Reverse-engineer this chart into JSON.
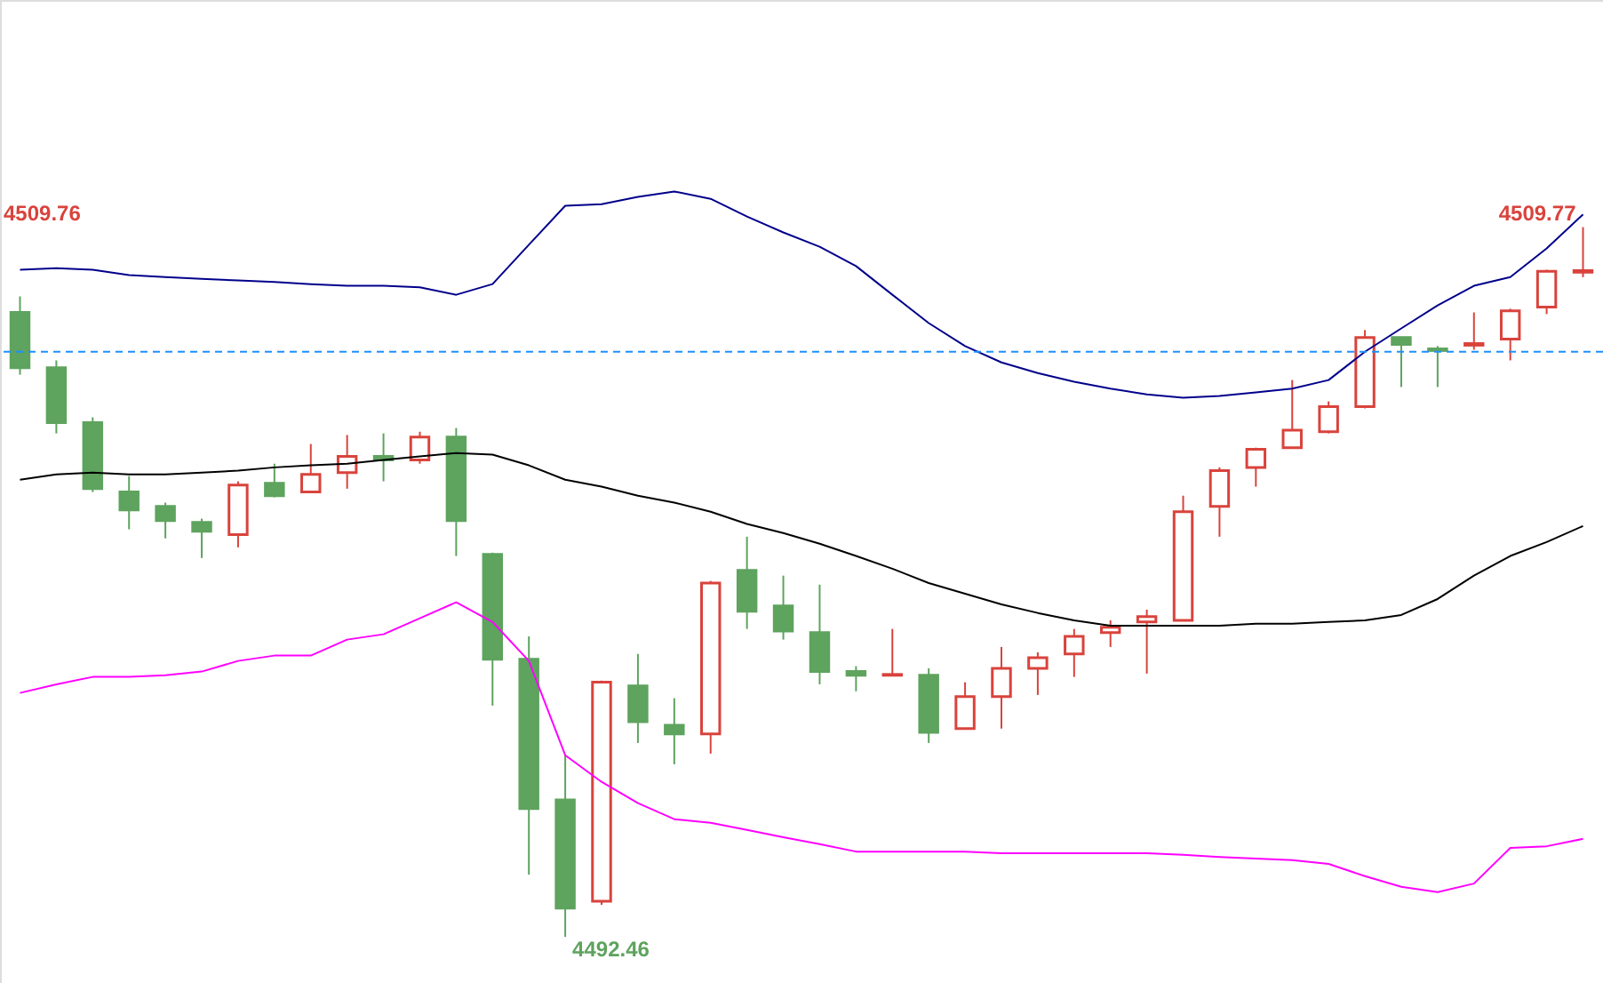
{
  "chart_data": {
    "type": "candlestick",
    "categories": [
      null,
      null,
      null,
      null,
      null,
      null,
      null,
      null,
      null,
      null,
      null,
      null,
      null,
      null,
      null,
      null,
      null,
      null,
      null,
      null,
      null,
      null,
      null,
      null,
      null,
      null,
      null,
      null,
      null,
      null,
      null,
      null,
      null,
      null,
      null,
      null,
      null,
      null,
      null,
      null,
      null,
      null,
      null,
      null
    ],
    "ohlc": [
      [
        4507.69,
        4508.08,
        4506.17,
        4506.34
      ],
      [
        4506.34,
        4506.52,
        4504.74,
        4505.0
      ],
      [
        4505.0,
        4505.13,
        4503.31,
        4503.39
      ],
      [
        4503.31,
        4503.7,
        4502.4,
        4502.87
      ],
      [
        4502.96,
        4503.05,
        4502.18,
        4502.61
      ],
      [
        4502.57,
        4502.66,
        4501.7,
        4502.35
      ],
      [
        4502.27,
        4503.57,
        4501.96,
        4503.48
      ],
      [
        4503.52,
        4504.0,
        4503.18,
        4503.22
      ],
      [
        4503.31,
        4504.48,
        4503.31,
        4503.74
      ],
      [
        4503.78,
        4504.7,
        4503.39,
        4504.18
      ],
      [
        4504.18,
        4504.74,
        4503.57,
        4504.09
      ],
      [
        4504.09,
        4504.78,
        4504.0,
        4504.65
      ],
      [
        4504.65,
        4504.87,
        4501.75,
        4502.61
      ],
      [
        4501.79,
        4501.83,
        4498.1,
        4499.23
      ],
      [
        4499.23,
        4499.79,
        4493.98,
        4495.59
      ],
      [
        4495.8,
        4496.89,
        4492.46,
        4493.16
      ],
      [
        4493.33,
        4498.71,
        4493.24,
        4498.67
      ],
      [
        4498.58,
        4499.36,
        4497.19,
        4497.71
      ],
      [
        4497.62,
        4498.28,
        4496.67,
        4497.41
      ],
      [
        4497.41,
        4501.14,
        4496.93,
        4501.09
      ],
      [
        4501.4,
        4502.22,
        4499.97,
        4500.4
      ],
      [
        4500.53,
        4501.27,
        4499.71,
        4499.92
      ],
      [
        4499.88,
        4501.05,
        4498.62,
        4498.93
      ],
      [
        4498.93,
        4499.06,
        4498.45,
        4498.84
      ],
      [
        4498.84,
        4499.97,
        4498.84,
        4498.86
      ],
      [
        4498.84,
        4499.01,
        4497.19,
        4497.45
      ],
      [
        4497.54,
        4498.67,
        4497.54,
        4498.32
      ],
      [
        4498.32,
        4499.53,
        4497.54,
        4499.01
      ],
      [
        4499.01,
        4499.4,
        4498.36,
        4499.27
      ],
      [
        4499.36,
        4499.97,
        4498.8,
        4499.79
      ],
      [
        4499.88,
        4500.18,
        4499.53,
        4500.01
      ],
      [
        4500.14,
        4500.44,
        4498.88,
        4500.27
      ],
      [
        4500.18,
        4503.22,
        4500.18,
        4502.83
      ],
      [
        4502.96,
        4503.91,
        4502.22,
        4503.83
      ],
      [
        4503.91,
        4504.39,
        4503.44,
        4504.35
      ],
      [
        4504.39,
        4506.04,
        4504.39,
        4504.82
      ],
      [
        4504.78,
        4505.52,
        4504.74,
        4505.39
      ],
      [
        4505.39,
        4507.26,
        4505.35,
        4507.08
      ],
      [
        4507.08,
        4507.08,
        4505.87,
        4506.91
      ],
      [
        4506.8,
        4506.87,
        4505.87,
        4506.76
      ],
      [
        4506.89,
        4507.69,
        4506.78,
        4506.93
      ],
      [
        4507.04,
        4507.78,
        4506.52,
        4507.73
      ],
      [
        4507.82,
        4508.73,
        4507.65,
        4508.69
      ],
      [
        4508.67,
        4509.77,
        4508.55,
        4508.71
      ]
    ],
    "colors": [
      "#5ea35e",
      "#5ea35e",
      "#5ea35e",
      "#5ea35e",
      "#5ea35e",
      "#5ea35e",
      "#d9433c",
      "#5ea35e",
      "#d9433c",
      "#d9433c",
      "#5ea35e",
      "#d9433c",
      "#5ea35e",
      "#5ea35e",
      "#5ea35e",
      "#5ea35e",
      "#d9433c",
      "#5ea35e",
      "#5ea35e",
      "#d9433c",
      "#5ea35e",
      "#5ea35e",
      "#5ea35e",
      "#5ea35e",
      "#d9433c",
      "#5ea35e",
      "#d9433c",
      "#d9433c",
      "#d9433c",
      "#d9433c",
      "#d9433c",
      "#d9433c",
      "#d9433c",
      "#d9433c",
      "#d9433c",
      "#d9433c",
      "#d9433c",
      "#d9433c",
      "#5ea35e",
      "#5ea35e",
      "#d9433c",
      "#d9433c",
      "#d9433c",
      "#d9433c"
    ],
    "series": [
      {
        "type": "line",
        "color": "#00008b",
        "values": [
          4508.73,
          4508.77,
          4508.73,
          4508.6,
          4508.55,
          4508.51,
          4508.47,
          4508.43,
          4508.38,
          4508.34,
          4508.34,
          4508.3,
          4508.12,
          4508.38,
          4509.34,
          4510.29,
          4510.33,
          4510.51,
          4510.64,
          4510.46,
          4510.03,
          4509.64,
          4509.29,
          4508.82,
          4508.12,
          4507.43,
          4506.87,
          4506.47,
          4506.21,
          4506.0,
          4505.83,
          4505.69,
          4505.61,
          4505.65,
          4505.74,
          4505.83,
          4506.04,
          4506.73,
          4507.3,
          4507.86,
          4508.34,
          4508.55,
          4509.25,
          4510.08
        ]
      },
      {
        "type": "line",
        "color": "#000000",
        "values": [
          4503.61,
          4503.74,
          4503.78,
          4503.74,
          4503.74,
          4503.78,
          4503.83,
          4503.91,
          4503.96,
          4504.0,
          4504.09,
          4504.18,
          4504.26,
          4504.22,
          4503.96,
          4503.61,
          4503.44,
          4503.22,
          4503.05,
          4502.83,
          4502.53,
          4502.31,
          4502.05,
          4501.75,
          4501.44,
          4501.09,
          4500.83,
          4500.57,
          4500.36,
          4500.18,
          4500.05,
          4500.05,
          4500.05,
          4500.05,
          4500.1,
          4500.1,
          4500.14,
          4500.18,
          4500.31,
          4500.7,
          4501.27,
          4501.75,
          4502.09,
          4502.48
        ]
      },
      {
        "type": "line",
        "color": "#ff00ff",
        "values": [
          4498.41,
          4498.62,
          4498.8,
          4498.8,
          4498.84,
          4498.93,
          4499.19,
          4499.32,
          4499.32,
          4499.71,
          4499.84,
          4500.23,
          4500.62,
          4500.14,
          4499.19,
          4496.89,
          4496.24,
          4495.72,
          4495.33,
          4495.24,
          4495.07,
          4494.89,
          4494.72,
          4494.54,
          4494.54,
          4494.54,
          4494.54,
          4494.5,
          4494.5,
          4494.5,
          4494.5,
          4494.5,
          4494.46,
          4494.41,
          4494.37,
          4494.33,
          4494.24,
          4493.94,
          4493.68,
          4493.55,
          4493.76,
          4494.63,
          4494.67,
          4494.85
        ]
      }
    ],
    "ref_lines": [
      {
        "axis": "y",
        "value": 4506.73,
        "color": "#1e90ff",
        "line_style": "dashed"
      }
    ],
    "annotations": [
      "4509.76",
      "4509.77",
      "4492.46"
    ]
  }
}
